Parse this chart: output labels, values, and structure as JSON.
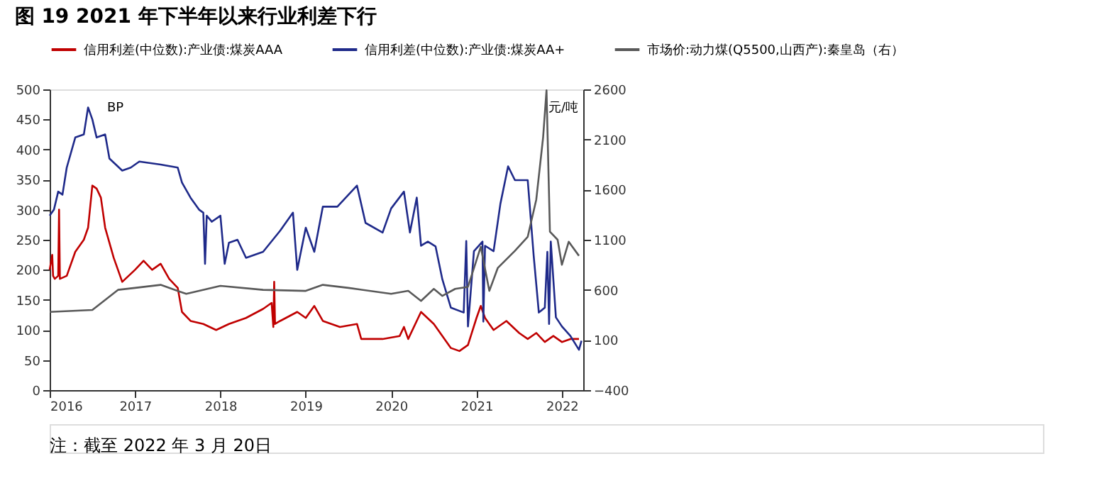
{
  "chart_data": {
    "type": "line",
    "title": "图 19  2021 年下半年以来行业利差下行",
    "ylabel": "BP",
    "y2label": "元/吨",
    "annotations": [
      "注：截至 2022 年 3 月 20日"
    ],
    "xlim": [
      2016,
      2022.25
    ],
    "xticks": [
      2016,
      2017,
      2018,
      2019,
      2020,
      2021,
      2022
    ],
    "ylim": [
      0,
      500
    ],
    "yticks": [
      0,
      50,
      100,
      150,
      200,
      250,
      300,
      350,
      400,
      450,
      500
    ],
    "y2lim": [
      -400,
      2600
    ],
    "y2ticks": [
      -400,
      100,
      600,
      1100,
      1600,
      2100,
      2600
    ],
    "grid": false,
    "legend": "top",
    "marker": "none",
    "line_style": "solid",
    "series": [
      {
        "name": "信用利差(中位数):产业债:煤炭AAA",
        "color": "#c00000",
        "x": [
          2016.0,
          2016.03,
          2016.04,
          2016.06,
          2016.1,
          2016.11,
          2016.12,
          2016.2,
          2016.3,
          2016.4,
          2016.45,
          2016.5,
          2016.55,
          2016.6,
          2016.65,
          2016.75,
          2016.85,
          2017.0,
          2017.1,
          2017.2,
          2017.3,
          2017.4,
          2017.5,
          2017.55,
          2017.65,
          2017.8,
          2017.95,
          2018.1,
          2018.3,
          2018.5,
          2018.6,
          2018.62,
          2018.63,
          2018.64,
          2018.7,
          2018.9,
          2019.0,
          2019.1,
          2019.2,
          2019.4,
          2019.6,
          2019.65,
          2019.9,
          2020.1,
          2020.15,
          2020.2,
          2020.35,
          2020.5,
          2020.6,
          2020.7,
          2020.8,
          2020.9,
          2021.0,
          2021.05,
          2021.1,
          2021.2,
          2021.35,
          2021.5,
          2021.6,
          2021.7,
          2021.8,
          2021.9,
          2022.0,
          2022.1,
          2022.2
        ],
        "values": [
          200,
          225,
          190,
          185,
          190,
          300,
          185,
          190,
          230,
          250,
          270,
          340,
          335,
          320,
          270,
          220,
          180,
          200,
          215,
          200,
          210,
          185,
          170,
          130,
          115,
          110,
          100,
          110,
          120,
          135,
          145,
          105,
          180,
          110,
          115,
          130,
          120,
          140,
          115,
          105,
          110,
          85,
          85,
          90,
          105,
          85,
          130,
          110,
          90,
          70,
          65,
          75,
          120,
          140,
          120,
          100,
          115,
          95,
          85,
          95,
          80,
          90,
          80,
          85,
          85
        ]
      },
      {
        "name": "信用利差(中位数):产业债:煤炭AA+",
        "color": "#1f2a8a",
        "x": [
          2016.0,
          2016.05,
          2016.1,
          2016.15,
          2016.2,
          2016.3,
          2016.4,
          2016.45,
          2016.5,
          2016.55,
          2016.65,
          2016.7,
          2016.85,
          2016.95,
          2017.05,
          2017.3,
          2017.5,
          2017.55,
          2017.65,
          2017.75,
          2017.8,
          2017.82,
          2017.84,
          2017.9,
          2018.0,
          2018.05,
          2018.1,
          2018.2,
          2018.3,
          2018.5,
          2018.7,
          2018.85,
          2018.9,
          2019.0,
          2019.1,
          2019.2,
          2019.37,
          2019.6,
          2019.7,
          2019.9,
          2020.0,
          2020.15,
          2020.22,
          2020.3,
          2020.35,
          2020.43,
          2020.52,
          2020.6,
          2020.7,
          2020.85,
          2020.88,
          2020.9,
          2020.97,
          2021.07,
          2021.08,
          2021.1,
          2021.2,
          2021.28,
          2021.37,
          2021.45,
          2021.6,
          2021.67,
          2021.73,
          2021.8,
          2021.83,
          2021.85,
          2021.87,
          2021.93,
          2022.0,
          2022.1,
          2022.2,
          2022.23
        ],
        "values": [
          290,
          300,
          330,
          325,
          370,
          420,
          425,
          470,
          450,
          420,
          425,
          385,
          365,
          370,
          380,
          375,
          370,
          345,
          320,
          300,
          295,
          210,
          290,
          280,
          290,
          210,
          245,
          250,
          220,
          230,
          265,
          295,
          200,
          270,
          230,
          305,
          305,
          340,
          278,
          262,
          302,
          330,
          262,
          320,
          240,
          247,
          239,
          184,
          137,
          129,
          248,
          106,
          231,
          247,
          114,
          240,
          231,
          310,
          372,
          349,
          349,
          223,
          129,
          137,
          230,
          110,
          247,
          121,
          106,
          90,
          67,
          82
        ]
      },
      {
        "name": "市场价:动力煤(Q5500,山西产):秦皇岛（右）",
        "color": "#595959",
        "axis": "y2",
        "x": [
          2016.0,
          2016.5,
          2016.8,
          2017.0,
          2017.3,
          2017.6,
          2018.0,
          2018.5,
          2019.0,
          2019.2,
          2019.5,
          2020.0,
          2020.2,
          2020.35,
          2020.5,
          2020.6,
          2020.75,
          2020.9,
          2021.05,
          2021.15,
          2021.25,
          2021.45,
          2021.6,
          2021.7,
          2021.78,
          2021.82,
          2021.86,
          2021.95,
          2022.0,
          2022.08,
          2022.2
        ],
        "values": [
          380,
          400,
          600,
          620,
          650,
          560,
          640,
          600,
          590,
          650,
          620,
          560,
          590,
          490,
          610,
          540,
          610,
          630,
          1030,
          590,
          820,
          990,
          1130,
          1500,
          2120,
          2590,
          1180,
          1100,
          850,
          1080,
          940
        ]
      }
    ]
  }
}
